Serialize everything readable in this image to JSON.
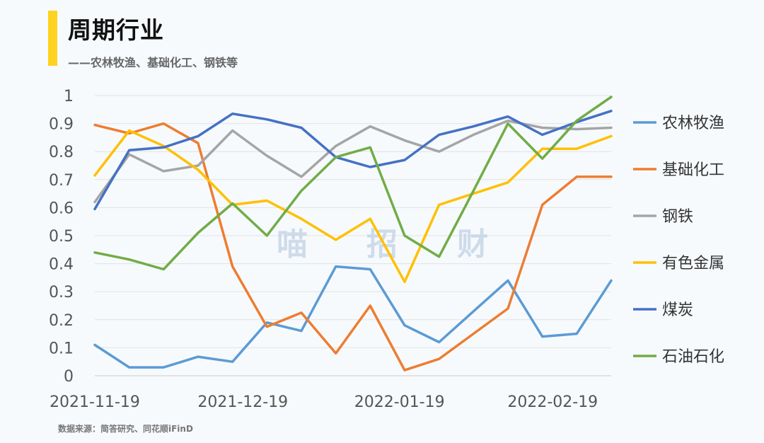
{
  "header": {
    "title": "周期行业",
    "subtitle": "——农林牧渔、基础化工、钢铁等",
    "accent_color": "#ffd21f"
  },
  "footer": {
    "source": "数据来源：简答研究、同花顺iFinD"
  },
  "watermark": [
    "喵",
    "招",
    "财"
  ],
  "chart_data": {
    "type": "line",
    "title": "",
    "xlabel": "",
    "ylabel": "",
    "ylim": [
      0,
      1
    ],
    "yticks": [
      0,
      0.1,
      0.2,
      0.3,
      0.4,
      0.5,
      0.6,
      0.7,
      0.8,
      0.9,
      1
    ],
    "ytick_labels": [
      "0",
      "0.1",
      "0.2",
      "0.3",
      "0.4",
      "0.5",
      "0.6",
      "0.7",
      "0.8",
      "0.9",
      "1"
    ],
    "x": [
      "2021-11-19",
      "2021-11-26",
      "2021-12-03",
      "2021-12-10",
      "2021-12-17",
      "2021-12-24",
      "2021-12-31",
      "2022-01-07",
      "2022-01-14",
      "2022-01-21",
      "2022-01-28",
      "2022-02-11",
      "2022-02-18",
      "2022-02-25",
      "2022-03-04",
      "2022-03-11"
    ],
    "x_tick_labels": [
      "2021-11-19",
      "2021-12-19",
      "2022-01-19",
      "2022-02-19"
    ],
    "x_tick_positions": [
      0,
      4.3,
      8.85,
      13.3
    ],
    "grid": true,
    "legend_position": "right",
    "series": [
      {
        "name": "农林牧渔",
        "color": "#5b9bd5",
        "values": [
          0.11,
          0.03,
          0.03,
          0.068,
          0.05,
          0.19,
          0.16,
          0.39,
          0.38,
          0.18,
          0.12,
          0.23,
          0.34,
          0.14,
          0.15,
          0.34
        ]
      },
      {
        "name": "基础化工",
        "color": "#ed7d31",
        "values": [
          0.895,
          0.865,
          0.9,
          0.83,
          0.39,
          0.175,
          0.225,
          0.08,
          0.25,
          0.02,
          0.06,
          0.15,
          0.24,
          0.61,
          0.71,
          0.71
        ]
      },
      {
        "name": "钢铁",
        "color": "#a5a5a5",
        "values": [
          0.62,
          0.79,
          0.73,
          0.75,
          0.875,
          0.785,
          0.71,
          0.82,
          0.89,
          0.84,
          0.8,
          0.86,
          0.91,
          0.885,
          0.88,
          0.885
        ]
      },
      {
        "name": "有色金属",
        "color": "#ffc000",
        "values": [
          0.715,
          0.875,
          0.82,
          0.735,
          0.61,
          0.625,
          0.56,
          0.485,
          0.56,
          0.335,
          0.61,
          0.65,
          0.69,
          0.81,
          0.81,
          0.855
        ]
      },
      {
        "name": "煤炭",
        "color": "#4472c4",
        "values": [
          0.595,
          0.805,
          0.815,
          0.855,
          0.935,
          0.915,
          0.885,
          0.78,
          0.745,
          0.77,
          0.86,
          0.89,
          0.925,
          0.86,
          0.905,
          0.945
        ]
      },
      {
        "name": "石油石化",
        "color": "#70ad47",
        "values": [
          0.44,
          0.415,
          0.38,
          0.51,
          0.615,
          0.5,
          0.66,
          0.78,
          0.815,
          0.5,
          0.425,
          0.66,
          0.9,
          0.775,
          0.91,
          0.995
        ]
      }
    ]
  }
}
